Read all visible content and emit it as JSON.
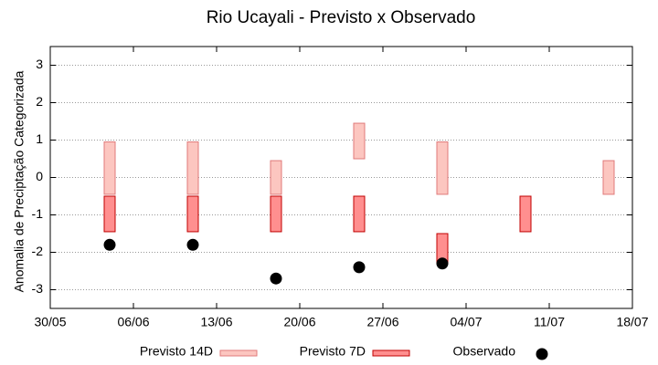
{
  "chart_data": {
    "type": "range",
    "title": "Rio Ucayali - Previsto x Observado",
    "y_label": "Anomalia de Preciptação Categorizada",
    "x": [
      "04/06",
      "11/06",
      "18/06",
      "25/06",
      "02/07",
      "09/07",
      "16/07"
    ],
    "xlim": [
      "30/05",
      "18/07"
    ],
    "xticks": [
      "30/05",
      "06/06",
      "13/06",
      "20/06",
      "27/06",
      "04/07",
      "11/07",
      "18/07"
    ],
    "ylim": [
      -3.5,
      3.5
    ],
    "yticks": [
      -3,
      -2,
      -1,
      0,
      1,
      2,
      3
    ],
    "grid": true,
    "series": [
      {
        "name": "Previsto 14D",
        "color": "#fcc6c0",
        "edge": "#e07a7a",
        "low": [
          -0.45,
          -0.45,
          -0.45,
          0.5,
          -0.45,
          null,
          -0.45
        ],
        "high": [
          0.95,
          0.95,
          0.45,
          1.45,
          0.95,
          null,
          0.45
        ]
      },
      {
        "name": "Previsto 7D",
        "color": "#ff8f8f",
        "edge": "#c00000",
        "low": [
          -1.45,
          -1.45,
          -1.45,
          -1.45,
          -2.3,
          -1.45,
          null
        ],
        "high": [
          -0.5,
          -0.5,
          -0.5,
          -0.5,
          -1.5,
          -0.5,
          null
        ]
      },
      {
        "name": "Observado",
        "color": "#000000",
        "values": [
          -1.8,
          -1.8,
          -2.7,
          -2.4,
          -2.3,
          null,
          null
        ]
      }
    ]
  }
}
